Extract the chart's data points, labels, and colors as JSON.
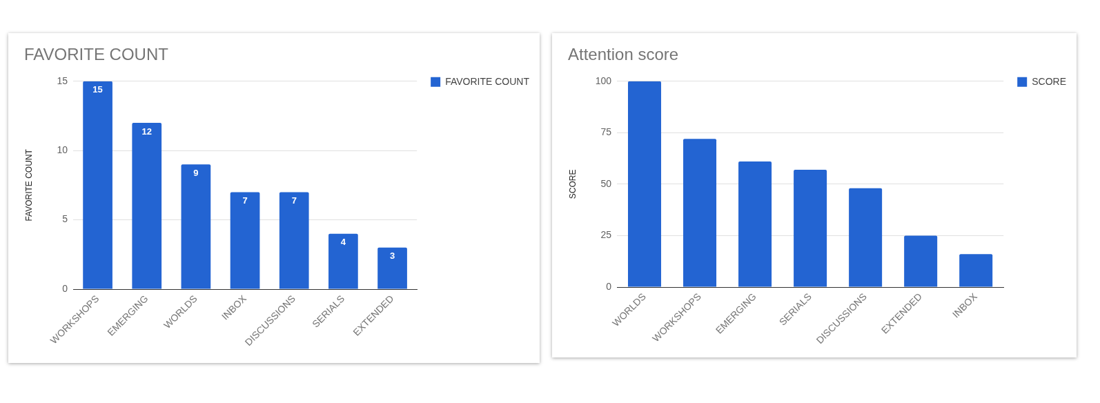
{
  "chart_data": [
    {
      "type": "bar",
      "title": "FAVORITE COUNT",
      "ylabel": "FAVORITE COUNT",
      "categories": [
        "WORKSHOPS",
        "EMERGING",
        "WORLDS",
        "INBOX",
        "DISCUSSIONS",
        "SERIALS",
        "EXTENDED"
      ],
      "series": [
        {
          "name": "FAVORITE COUNT",
          "color": "#2364d2",
          "values": [
            15,
            12,
            9,
            7,
            7,
            4,
            3
          ]
        }
      ],
      "ylim": [
        0,
        15
      ],
      "yticks": [
        0,
        5,
        10,
        15
      ],
      "grid": "y",
      "legend": "top right",
      "data_labels": true
    },
    {
      "type": "bar",
      "title": "Attention score",
      "ylabel": "SCORE",
      "categories": [
        "WORLDS",
        "WORKSHOPS",
        "EMERGING",
        "SERIALS",
        "DISCUSSIONS",
        "EXTENDED",
        "INBOX"
      ],
      "series": [
        {
          "name": "SCORE",
          "color": "#2364d2",
          "values": [
            100,
            72,
            61,
            57,
            48,
            25,
            16
          ]
        }
      ],
      "ylim": [
        0,
        100
      ],
      "yticks": [
        0,
        25,
        50,
        75,
        100
      ],
      "grid": "y",
      "legend": "top right"
    }
  ]
}
